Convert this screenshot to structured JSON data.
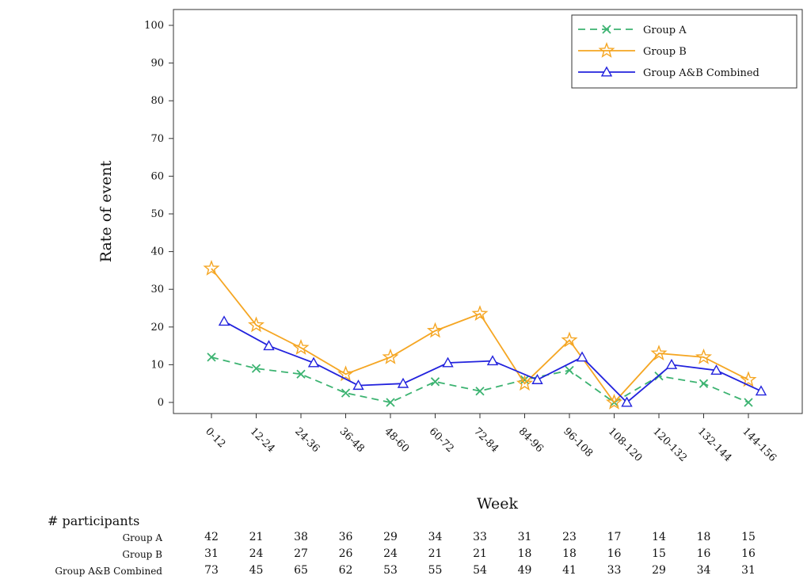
{
  "chart_data": {
    "type": "line",
    "xlabel": "Week",
    "ylabel": "Rate of event",
    "ylim": [
      0,
      100
    ],
    "yticks": [
      0,
      10,
      20,
      30,
      40,
      50,
      60,
      70,
      80,
      90,
      100
    ],
    "categories": [
      "0-12",
      "12-24",
      "24-36",
      "36-48",
      "48-60",
      "60-72",
      "72-84",
      "84-96",
      "96-108",
      "108-120",
      "120-132",
      "132-144",
      "144-156"
    ],
    "legend_position": "top-right",
    "series": [
      {
        "name": "Group A",
        "color": "#3cb371",
        "line_style": "dashed",
        "marker": "x",
        "values": [
          12,
          9,
          7.5,
          2.5,
          0,
          5.5,
          3,
          6,
          8.5,
          0,
          7,
          5,
          0
        ]
      },
      {
        "name": "Group B",
        "color": "#f5a623",
        "line_style": "solid",
        "marker": "star",
        "values": [
          35.5,
          20.5,
          14.5,
          7.5,
          12,
          19,
          23.5,
          5,
          16.5,
          0,
          13,
          12,
          6
        ]
      },
      {
        "name": "Group A&B Combined",
        "color": "#2222dd",
        "line_style": "solid",
        "marker": "triangle",
        "values": [
          21.5,
          15,
          10.5,
          4.5,
          5,
          10.5,
          11,
          6,
          12,
          0,
          10,
          8.5,
          3
        ]
      }
    ]
  },
  "participants": {
    "title": "# participants",
    "rows": [
      {
        "label": "Group A",
        "values": [
          "42",
          "21",
          "38",
          "36",
          "29",
          "34",
          "33",
          "31",
          "23",
          "17",
          "14",
          "18",
          "15"
        ]
      },
      {
        "label": "Group B",
        "values": [
          "31",
          "24",
          "27",
          "26",
          "24",
          "21",
          "21",
          "18",
          "18",
          "16",
          "15",
          "16",
          "16"
        ]
      },
      {
        "label": "Group A&B Combined",
        "values": [
          "73",
          "45",
          "65",
          "62",
          "53",
          "55",
          "54",
          "49",
          "41",
          "33",
          "29",
          "34",
          "31"
        ]
      }
    ]
  }
}
